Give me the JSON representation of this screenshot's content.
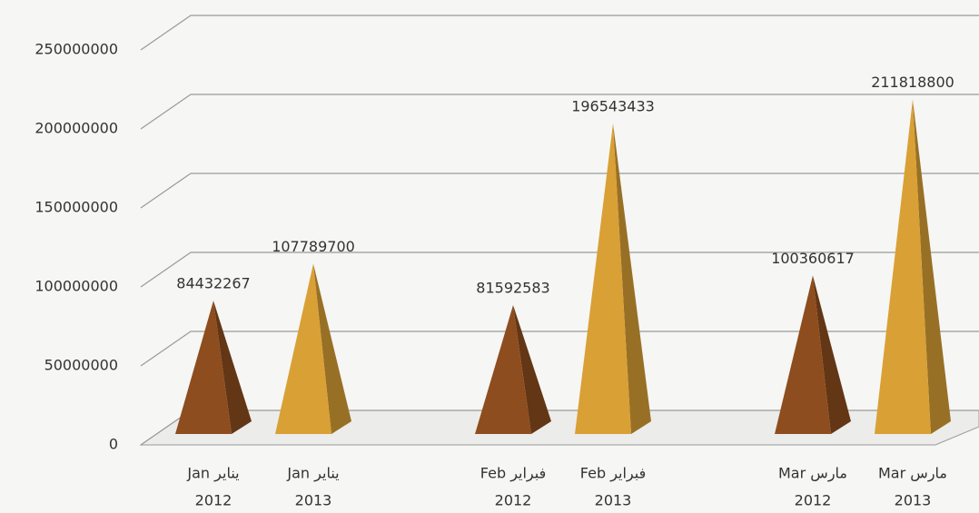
{
  "chart_data": {
    "type": "pyramid",
    "categories": [
      [
        "Jan  يناير",
        "2012"
      ],
      [
        "Jan  يناير",
        "2013"
      ],
      [
        "Feb  فبراير",
        "2012"
      ],
      [
        "Feb  فبراير",
        "2013"
      ],
      [
        "Mar  مارس",
        "2012"
      ],
      [
        "Mar  مارس",
        "2013"
      ]
    ],
    "values": [
      84432267,
      107789700,
      81592583,
      196543433,
      100360617,
      211818800
    ],
    "colors": [
      "#8e4d1e",
      "#d9a035",
      "#8e4d1e",
      "#d9a035",
      "#8e4d1e",
      "#d9a035"
    ],
    "ylim": [
      0,
      250000000
    ],
    "yticks": [
      0,
      50000000,
      100000000,
      150000000,
      200000000,
      250000000
    ],
    "grid": true
  }
}
